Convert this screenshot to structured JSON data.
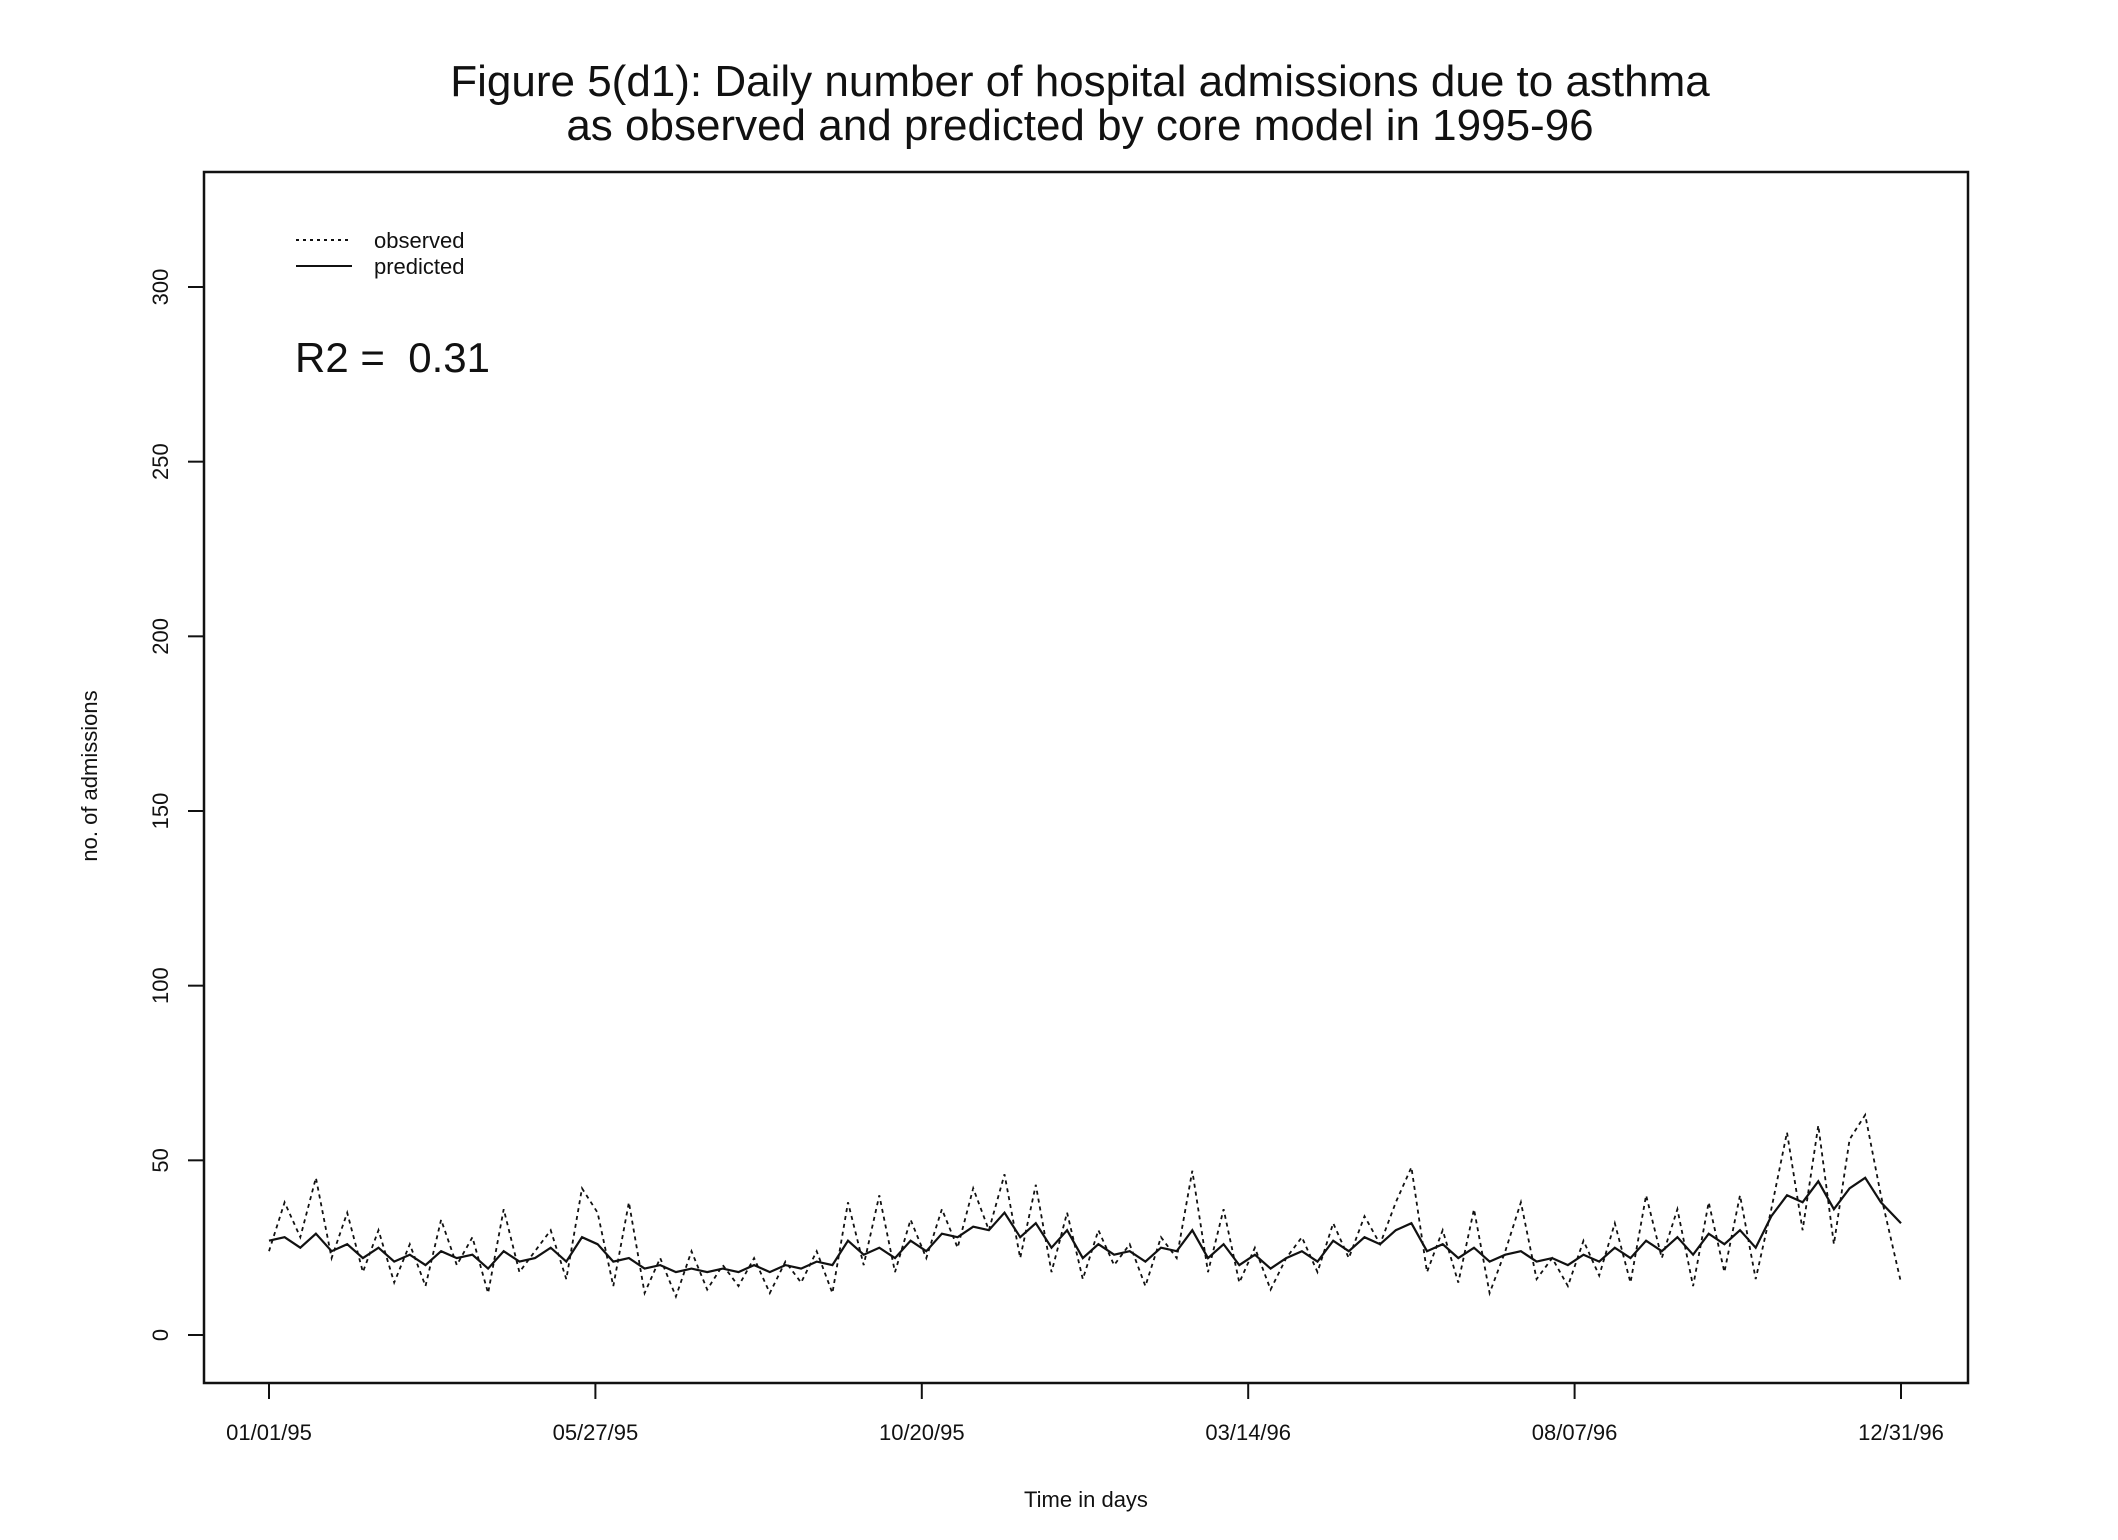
{
  "chart_data": {
    "type": "line",
    "title": [
      "Figure 5(d1): Daily number of hospital admissions due to asthma",
      "as observed and predicted by core model in 1995-96"
    ],
    "xlabel": "Time in days",
    "ylabel": "no. of admissions",
    "xlim_days": [
      0,
      730
    ],
    "ylim": [
      -13,
      330
    ],
    "yticks": [
      0,
      50,
      100,
      150,
      200,
      250,
      300
    ],
    "xticks": [
      {
        "day": 0,
        "label": "01/01/95"
      },
      {
        "day": 146,
        "label": "05/27/95"
      },
      {
        "day": 292,
        "label": "10/20/95"
      },
      {
        "day": 438,
        "label": "03/14/96"
      },
      {
        "day": 584,
        "label": "08/07/96"
      },
      {
        "day": 730,
        "label": "12/31/96"
      }
    ],
    "legend": {
      "position": "top-left",
      "entries": [
        {
          "label": "observed",
          "style": "dotted"
        },
        {
          "label": "predicted",
          "style": "solid"
        }
      ]
    },
    "annotation": "R2 =  0.31",
    "x_step_days": 7,
    "series": [
      {
        "name": "observed",
        "style": "dotted",
        "values": [
          24,
          38,
          28,
          45,
          22,
          35,
          18,
          30,
          15,
          26,
          14,
          33,
          20,
          28,
          12,
          36,
          18,
          24,
          30,
          16,
          42,
          35,
          14,
          38,
          12,
          22,
          11,
          24,
          13,
          20,
          14,
          22,
          12,
          21,
          15,
          24,
          12,
          38,
          20,
          40,
          18,
          33,
          22,
          36,
          25,
          42,
          30,
          46,
          22,
          43,
          18,
          35,
          16,
          30,
          20,
          26,
          14,
          28,
          22,
          47,
          18,
          36,
          15,
          25,
          13,
          22,
          28,
          18,
          32,
          22,
          34,
          26,
          38,
          48,
          18,
          30,
          15,
          36,
          12,
          24,
          38,
          16,
          22,
          14,
          27,
          17,
          32,
          15,
          40,
          22,
          36,
          14,
          38,
          18,
          40,
          16,
          36,
          58,
          30,
          60,
          26,
          56,
          63,
          40,
          15
        ]
      },
      {
        "name": "predicted",
        "style": "solid",
        "values": [
          27,
          28,
          25,
          29,
          24,
          26,
          22,
          25,
          21,
          23,
          20,
          24,
          22,
          23,
          19,
          24,
          21,
          22,
          25,
          21,
          28,
          26,
          21,
          22,
          19,
          20,
          18,
          19,
          18,
          19,
          18,
          20,
          18,
          20,
          19,
          21,
          20,
          27,
          23,
          25,
          22,
          27,
          24,
          29,
          28,
          31,
          30,
          35,
          28,
          32,
          25,
          30,
          22,
          26,
          23,
          24,
          21,
          25,
          24,
          30,
          22,
          26,
          20,
          23,
          19,
          22,
          24,
          21,
          27,
          24,
          28,
          26,
          30,
          32,
          24,
          26,
          22,
          25,
          21,
          23,
          24,
          21,
          22,
          20,
          23,
          21,
          25,
          22,
          27,
          24,
          28,
          23,
          29,
          26,
          30,
          25,
          34,
          40,
          38,
          44,
          36,
          42,
          45,
          38,
          32
        ]
      }
    ]
  }
}
